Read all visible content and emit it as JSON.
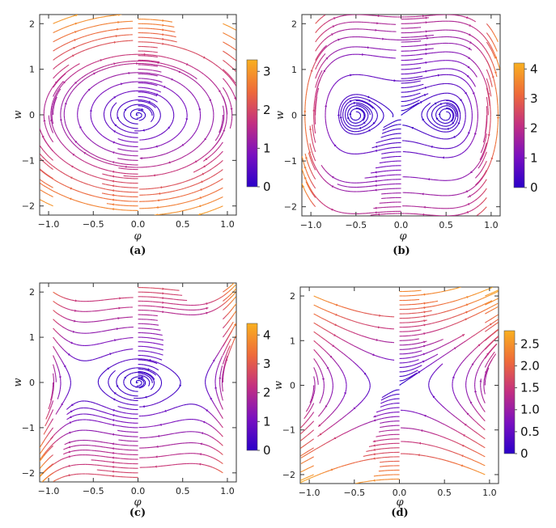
{
  "chart_data": [
    {
      "type": "streamplot",
      "panel": "a",
      "caption": "(a)",
      "xlabel": "φ",
      "ylabel": "w",
      "xlim": [
        -1.1,
        1.1
      ],
      "ylim": [
        -2.2,
        2.2
      ],
      "xticks": [
        "-1.0",
        "-0.5",
        "0.0",
        "0.5",
        "1.0"
      ],
      "yticks": [
        "-2",
        "-1",
        "0",
        "1",
        "2"
      ],
      "field": "center at origin",
      "colorbar": {
        "min": 0,
        "max": 3.3,
        "ticks": [
          "0",
          "1",
          "2",
          "3"
        ]
      },
      "colormap": [
        "#2a00c8",
        "#7a10c0",
        "#c22f82",
        "#ee6a3a",
        "#f9b020"
      ]
    },
    {
      "type": "streamplot",
      "panel": "b",
      "caption": "(b)",
      "xlabel": "φ",
      "ylabel": "w",
      "xlim": [
        -1.1,
        1.1
      ],
      "ylim": [
        -2.2,
        2.2
      ],
      "xticks": [
        "-1.0",
        "-0.5",
        "0.0",
        "0.5",
        "1.0"
      ],
      "yticks": [
        "-2",
        "-1",
        "0",
        "1",
        "2"
      ],
      "field": "two centers at phi = +/-0.5, saddle at origin",
      "colorbar": {
        "min": 0,
        "max": 4.2,
        "ticks": [
          "0",
          "1",
          "2",
          "3",
          "4"
        ]
      },
      "colormap": [
        "#2a00c8",
        "#7a10c0",
        "#c22f82",
        "#ee6a3a",
        "#f9b020"
      ]
    },
    {
      "type": "streamplot",
      "panel": "c",
      "caption": "(c)",
      "xlabel": "φ",
      "ylabel": "w",
      "xlim": [
        -1.1,
        1.1
      ],
      "ylim": [
        -2.2,
        2.2
      ],
      "xticks": [
        "-1.0",
        "-0.5",
        "0.0",
        "0.5",
        "1.0"
      ],
      "yticks": [
        "-2",
        "-1",
        "0",
        "1",
        "2"
      ],
      "field": "center at origin, saddles at phi = +/-0.6",
      "colorbar": {
        "min": 0,
        "max": 4.4,
        "ticks": [
          "0",
          "1",
          "2",
          "3",
          "4"
        ]
      },
      "colormap": [
        "#2a00c8",
        "#7a10c0",
        "#c22f82",
        "#ee6a3a",
        "#f9b020"
      ]
    },
    {
      "type": "streamplot",
      "panel": "d",
      "caption": "(d)",
      "xlabel": "φ",
      "ylabel": "w",
      "xlim": [
        -1.1,
        1.1
      ],
      "ylim": [
        -2.2,
        2.2
      ],
      "xticks": [
        "-1.0",
        "-0.5",
        "0.0",
        "0.5",
        "1.0"
      ],
      "yticks": [
        "-2",
        "-1",
        "0",
        "1",
        "2"
      ],
      "field": "saddle at origin",
      "colorbar": {
        "min": 0,
        "max": 2.8,
        "ticks": [
          "0",
          "0.5",
          "1.0",
          "1.5",
          "2.0",
          "2.5"
        ]
      },
      "colormap": [
        "#2a00c8",
        "#7a10c0",
        "#c22f82",
        "#ee6a3a",
        "#f9b020"
      ]
    }
  ]
}
